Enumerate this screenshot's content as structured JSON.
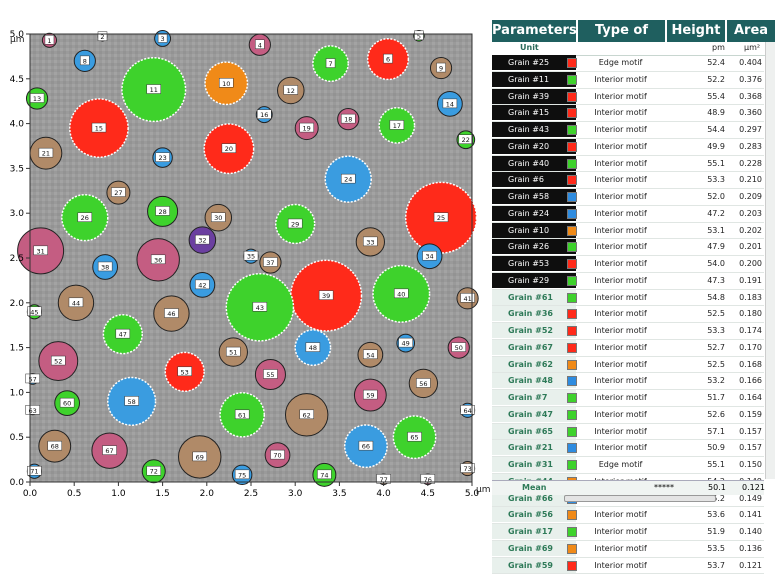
{
  "plot": {
    "y_unit": "μm",
    "x_unit": "μm",
    "x_ticks": [
      "0.0",
      "0.5",
      "1.0",
      "1.5",
      "2.0",
      "2.5",
      "3.0",
      "3.5",
      "4.0",
      "4.5",
      "5.0"
    ],
    "y_ticks": [
      "0.0",
      "0.5",
      "1.0",
      "1.5",
      "2.0",
      "2.5",
      "3.0",
      "3.5",
      "4.0",
      "4.5",
      "5.0"
    ],
    "legend_colors": {
      "red": "#ff2a1a",
      "green": "#3ed22c",
      "orange": "#f08a18",
      "blue": "#2e8ce0",
      "purple": "#7a3fa0",
      "grey": "#8c8c8c"
    },
    "grains": [
      {
        "n": "1",
        "x": 0.22,
        "y": 4.93,
        "r": 0.08,
        "c": "pink"
      },
      {
        "n": "2",
        "x": 0.82,
        "y": 4.97,
        "r": 0.05,
        "c": "pink"
      },
      {
        "n": "3",
        "x": 1.5,
        "y": 4.95,
        "r": 0.09,
        "c": "blue"
      },
      {
        "n": "4",
        "x": 2.6,
        "y": 4.88,
        "r": 0.12,
        "c": "pink"
      },
      {
        "n": "5",
        "x": 4.4,
        "y": 4.98,
        "r": 0.06,
        "c": "green"
      },
      {
        "n": "6",
        "x": 4.05,
        "y": 4.72,
        "r": 0.23,
        "c": "red"
      },
      {
        "n": "7",
        "x": 3.4,
        "y": 4.67,
        "r": 0.2,
        "c": "green"
      },
      {
        "n": "8",
        "x": 0.62,
        "y": 4.7,
        "r": 0.12,
        "c": "blue"
      },
      {
        "n": "9",
        "x": 4.65,
        "y": 4.62,
        "r": 0.12,
        "c": "tan"
      },
      {
        "n": "10",
        "x": 2.22,
        "y": 4.45,
        "r": 0.24,
        "c": "orange"
      },
      {
        "n": "11",
        "x": 1.4,
        "y": 4.38,
        "r": 0.36,
        "c": "green"
      },
      {
        "n": "12",
        "x": 2.95,
        "y": 4.37,
        "r": 0.15,
        "c": "tan"
      },
      {
        "n": "13",
        "x": 0.08,
        "y": 4.28,
        "r": 0.12,
        "c": "green"
      },
      {
        "n": "14",
        "x": 4.75,
        "y": 4.22,
        "r": 0.14,
        "c": "blue"
      },
      {
        "n": "15",
        "x": 0.78,
        "y": 3.95,
        "r": 0.33,
        "c": "red"
      },
      {
        "n": "16",
        "x": 2.65,
        "y": 4.1,
        "r": 0.09,
        "c": "blue"
      },
      {
        "n": "17",
        "x": 4.15,
        "y": 3.98,
        "r": 0.2,
        "c": "green"
      },
      {
        "n": "18",
        "x": 3.6,
        "y": 4.05,
        "r": 0.12,
        "c": "pink"
      },
      {
        "n": "19",
        "x": 3.13,
        "y": 3.95,
        "r": 0.13,
        "c": "pink"
      },
      {
        "n": "20",
        "x": 2.25,
        "y": 3.72,
        "r": 0.28,
        "c": "red"
      },
      {
        "n": "21",
        "x": 0.18,
        "y": 3.67,
        "r": 0.18,
        "c": "tan"
      },
      {
        "n": "22",
        "x": 4.93,
        "y": 3.82,
        "r": 0.1,
        "c": "green"
      },
      {
        "n": "23",
        "x": 1.5,
        "y": 3.62,
        "r": 0.11,
        "c": "blue"
      },
      {
        "n": "24",
        "x": 3.6,
        "y": 3.38,
        "r": 0.26,
        "c": "blue"
      },
      {
        "n": "25",
        "x": 4.65,
        "y": 2.95,
        "r": 0.4,
        "c": "red"
      },
      {
        "n": "26",
        "x": 0.62,
        "y": 2.95,
        "r": 0.26,
        "c": "green"
      },
      {
        "n": "27",
        "x": 1.0,
        "y": 3.23,
        "r": 0.13,
        "c": "tan"
      },
      {
        "n": "28",
        "x": 1.5,
        "y": 3.02,
        "r": 0.17,
        "c": "green"
      },
      {
        "n": "29",
        "x": 3.0,
        "y": 2.88,
        "r": 0.22,
        "c": "green"
      },
      {
        "n": "30",
        "x": 2.13,
        "y": 2.95,
        "r": 0.15,
        "c": "tan"
      },
      {
        "n": "31",
        "x": 0.12,
        "y": 2.58,
        "r": 0.26,
        "c": "pink"
      },
      {
        "n": "32",
        "x": 1.95,
        "y": 2.7,
        "r": 0.15,
        "c": "purple"
      },
      {
        "n": "33",
        "x": 3.85,
        "y": 2.68,
        "r": 0.16,
        "c": "tan"
      },
      {
        "n": "34",
        "x": 4.52,
        "y": 2.52,
        "r": 0.14,
        "c": "blue"
      },
      {
        "n": "35",
        "x": 2.5,
        "y": 2.52,
        "r": 0.08,
        "c": "blue"
      },
      {
        "n": "36",
        "x": 1.45,
        "y": 2.48,
        "r": 0.24,
        "c": "pink"
      },
      {
        "n": "37",
        "x": 2.72,
        "y": 2.45,
        "r": 0.12,
        "c": "tan"
      },
      {
        "n": "38",
        "x": 0.85,
        "y": 2.4,
        "r": 0.14,
        "c": "blue"
      },
      {
        "n": "39",
        "x": 3.35,
        "y": 2.08,
        "r": 0.4,
        "c": "red"
      },
      {
        "n": "40",
        "x": 4.2,
        "y": 2.1,
        "r": 0.32,
        "c": "green"
      },
      {
        "n": "41",
        "x": 4.95,
        "y": 2.05,
        "r": 0.12,
        "c": "tan"
      },
      {
        "n": "42",
        "x": 1.95,
        "y": 2.2,
        "r": 0.14,
        "c": "blue"
      },
      {
        "n": "43",
        "x": 2.6,
        "y": 1.95,
        "r": 0.38,
        "c": "green"
      },
      {
        "n": "44",
        "x": 0.52,
        "y": 2.0,
        "r": 0.2,
        "c": "tan"
      },
      {
        "n": "45",
        "x": 0.05,
        "y": 1.9,
        "r": 0.08,
        "c": "green"
      },
      {
        "n": "46",
        "x": 1.6,
        "y": 1.88,
        "r": 0.2,
        "c": "tan"
      },
      {
        "n": "47",
        "x": 1.05,
        "y": 1.65,
        "r": 0.22,
        "c": "green"
      },
      {
        "n": "48",
        "x": 3.2,
        "y": 1.5,
        "r": 0.2,
        "c": "blue"
      },
      {
        "n": "49",
        "x": 4.25,
        "y": 1.55,
        "r": 0.1,
        "c": "blue"
      },
      {
        "n": "50",
        "x": 4.85,
        "y": 1.5,
        "r": 0.12,
        "c": "pink"
      },
      {
        "n": "51",
        "x": 2.3,
        "y": 1.45,
        "r": 0.16,
        "c": "tan"
      },
      {
        "n": "52",
        "x": 0.32,
        "y": 1.35,
        "r": 0.22,
        "c": "pink"
      },
      {
        "n": "53",
        "x": 1.75,
        "y": 1.23,
        "r": 0.22,
        "c": "red"
      },
      {
        "n": "54",
        "x": 3.85,
        "y": 1.42,
        "r": 0.14,
        "c": "tan"
      },
      {
        "n": "55",
        "x": 2.72,
        "y": 1.2,
        "r": 0.17,
        "c": "pink"
      },
      {
        "n": "56",
        "x": 4.45,
        "y": 1.1,
        "r": 0.16,
        "c": "tan"
      },
      {
        "n": "57",
        "x": 0.03,
        "y": 1.15,
        "r": 0.06,
        "c": "blue"
      },
      {
        "n": "58",
        "x": 1.15,
        "y": 0.9,
        "r": 0.27,
        "c": "blue"
      },
      {
        "n": "59",
        "x": 3.85,
        "y": 0.97,
        "r": 0.18,
        "c": "pink"
      },
      {
        "n": "60",
        "x": 0.42,
        "y": 0.88,
        "r": 0.14,
        "c": "green"
      },
      {
        "n": "61",
        "x": 2.4,
        "y": 0.75,
        "r": 0.25,
        "c": "green"
      },
      {
        "n": "62",
        "x": 3.13,
        "y": 0.75,
        "r": 0.24,
        "c": "tan"
      },
      {
        "n": "63",
        "x": 0.03,
        "y": 0.8,
        "r": 0.05,
        "c": "blue"
      },
      {
        "n": "64",
        "x": 4.95,
        "y": 0.8,
        "r": 0.08,
        "c": "blue"
      },
      {
        "n": "65",
        "x": 4.35,
        "y": 0.5,
        "r": 0.24,
        "c": "green"
      },
      {
        "n": "66",
        "x": 3.8,
        "y": 0.4,
        "r": 0.24,
        "c": "blue"
      },
      {
        "n": "67",
        "x": 0.9,
        "y": 0.35,
        "r": 0.2,
        "c": "pink"
      },
      {
        "n": "68",
        "x": 0.28,
        "y": 0.4,
        "r": 0.18,
        "c": "tan"
      },
      {
        "n": "69",
        "x": 1.92,
        "y": 0.28,
        "r": 0.24,
        "c": "tan"
      },
      {
        "n": "70",
        "x": 2.8,
        "y": 0.3,
        "r": 0.14,
        "c": "pink"
      },
      {
        "n": "71",
        "x": 0.05,
        "y": 0.12,
        "r": 0.08,
        "c": "blue"
      },
      {
        "n": "72",
        "x": 1.4,
        "y": 0.12,
        "r": 0.13,
        "c": "green"
      },
      {
        "n": "73",
        "x": 4.95,
        "y": 0.15,
        "r": 0.08,
        "c": "tan"
      },
      {
        "n": "74",
        "x": 3.33,
        "y": 0.08,
        "r": 0.13,
        "c": "green"
      },
      {
        "n": "75",
        "x": 2.4,
        "y": 0.08,
        "r": 0.11,
        "c": "blue"
      },
      {
        "n": "76",
        "x": 4.5,
        "y": 0.03,
        "r": 0.06,
        "c": "pink"
      },
      {
        "n": "77",
        "x": 4.0,
        "y": 0.03,
        "r": 0.06,
        "c": "tan"
      }
    ]
  },
  "table": {
    "headers": {
      "params": "Parameters",
      "motif": "Type of motif",
      "height": "Height",
      "area": "Area"
    },
    "unit": {
      "label": "Unit",
      "height": "pm",
      "area": "μm²"
    },
    "rows": [
      {
        "name": "Grain #25",
        "color": "red",
        "motif": "Edge motif",
        "height": "52.4",
        "area": "0.404",
        "dark": true
      },
      {
        "name": "Grain #11",
        "color": "green",
        "motif": "Interior motif",
        "height": "52.2",
        "area": "0.376",
        "dark": true
      },
      {
        "name": "Grain #39",
        "color": "red",
        "motif": "Interior motif",
        "height": "55.4",
        "area": "0.368",
        "dark": true
      },
      {
        "name": "Grain #15",
        "color": "red",
        "motif": "Interior motif",
        "height": "48.9",
        "area": "0.360",
        "dark": true
      },
      {
        "name": "Grain #43",
        "color": "green",
        "motif": "Interior motif",
        "height": "54.4",
        "area": "0.297",
        "dark": true
      },
      {
        "name": "Grain #20",
        "color": "red",
        "motif": "Interior motif",
        "height": "49.9",
        "area": "0.283",
        "dark": true
      },
      {
        "name": "Grain #40",
        "color": "green",
        "motif": "Interior motif",
        "height": "55.1",
        "area": "0.228",
        "dark": true
      },
      {
        "name": "Grain #6",
        "color": "red",
        "motif": "Interior motif",
        "height": "53.3",
        "area": "0.210",
        "dark": true
      },
      {
        "name": "Grain #58",
        "color": "blue",
        "motif": "Interior motif",
        "height": "52.0",
        "area": "0.209",
        "dark": true
      },
      {
        "name": "Grain #24",
        "color": "blue",
        "motif": "Interior motif",
        "height": "47.2",
        "area": "0.203",
        "dark": true
      },
      {
        "name": "Grain #10",
        "color": "orange",
        "motif": "Interior motif",
        "height": "53.1",
        "area": "0.202",
        "dark": true
      },
      {
        "name": "Grain #26",
        "color": "green",
        "motif": "Interior motif",
        "height": "47.9",
        "area": "0.201",
        "dark": true
      },
      {
        "name": "Grain #53",
        "color": "red",
        "motif": "Interior motif",
        "height": "54.0",
        "area": "0.200",
        "dark": true
      },
      {
        "name": "Grain #29",
        "color": "green",
        "motif": "Interior motif",
        "height": "47.3",
        "area": "0.191",
        "dark": true
      },
      {
        "name": "Grain #61",
        "color": "green",
        "motif": "Interior motif",
        "height": "54.8",
        "area": "0.183",
        "dark": false
      },
      {
        "name": "Grain #36",
        "color": "red",
        "motif": "Interior motif",
        "height": "52.5",
        "area": "0.180",
        "dark": false
      },
      {
        "name": "Grain #52",
        "color": "red",
        "motif": "Interior motif",
        "height": "53.3",
        "area": "0.174",
        "dark": false
      },
      {
        "name": "Grain #67",
        "color": "red",
        "motif": "Interior motif",
        "height": "52.7",
        "area": "0.170",
        "dark": false
      },
      {
        "name": "Grain #62",
        "color": "orange",
        "motif": "Interior motif",
        "height": "52.5",
        "area": "0.168",
        "dark": false
      },
      {
        "name": "Grain #48",
        "color": "blue",
        "motif": "Interior motif",
        "height": "53.2",
        "area": "0.166",
        "dark": false
      },
      {
        "name": "Grain #7",
        "color": "green",
        "motif": "Interior motif",
        "height": "51.7",
        "area": "0.164",
        "dark": false
      },
      {
        "name": "Grain #47",
        "color": "green",
        "motif": "Interior motif",
        "height": "52.6",
        "area": "0.159",
        "dark": false
      },
      {
        "name": "Grain #65",
        "color": "green",
        "motif": "Interior motif",
        "height": "57.1",
        "area": "0.157",
        "dark": false
      },
      {
        "name": "Grain #21",
        "color": "blue",
        "motif": "Interior motif",
        "height": "50.9",
        "area": "0.157",
        "dark": false
      },
      {
        "name": "Grain #31",
        "color": "green",
        "motif": "Edge motif",
        "height": "55.1",
        "area": "0.150",
        "dark": false
      },
      {
        "name": "Grain #44",
        "color": "orange",
        "motif": "Interior motif",
        "height": "54.2",
        "area": "0.149",
        "dark": false
      },
      {
        "name": "Grain #66",
        "color": "blue",
        "motif": "Interior motif",
        "height": "55.2",
        "area": "0.149",
        "dark": false
      },
      {
        "name": "Grain #56",
        "color": "orange",
        "motif": "Interior motif",
        "height": "53.6",
        "area": "0.141",
        "dark": false
      },
      {
        "name": "Grain #17",
        "color": "green",
        "motif": "Interior motif",
        "height": "51.9",
        "area": "0.140",
        "dark": false
      },
      {
        "name": "Grain #69",
        "color": "orange",
        "motif": "Interior motif",
        "height": "53.5",
        "area": "0.136",
        "dark": false
      },
      {
        "name": "Grain #59",
        "color": "red",
        "motif": "Interior motif",
        "height": "53.7",
        "area": "0.121",
        "dark": false
      }
    ],
    "mean": {
      "label": "Mean",
      "motif": "*****",
      "height": "50.1",
      "area": "0.121"
    }
  }
}
